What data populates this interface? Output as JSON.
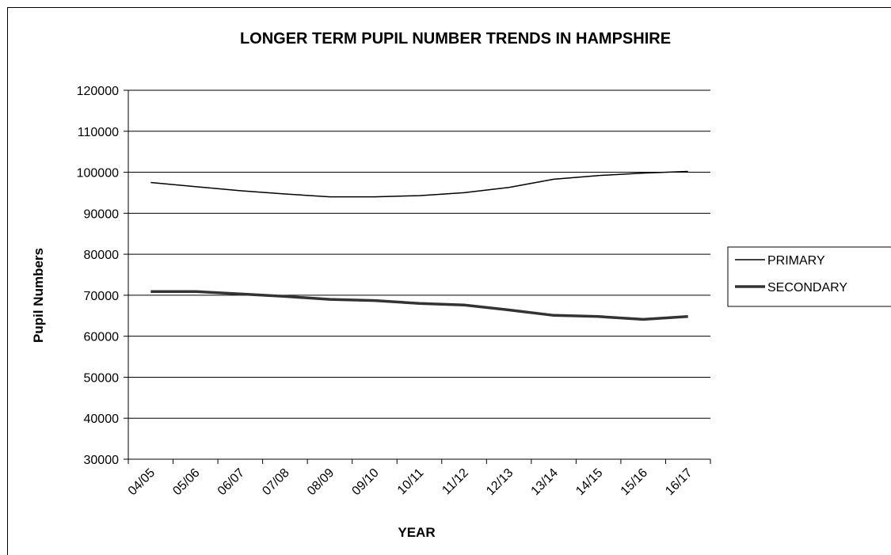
{
  "chart_data": {
    "type": "line",
    "title": "LONGER TERM PUPIL NUMBER TRENDS IN HAMPSHIRE",
    "xlabel": "YEAR",
    "ylabel": "Pupil Numbers",
    "categories": [
      "04/05",
      "05/06",
      "06/07",
      "07/08",
      "08/09",
      "09/10",
      "10/11",
      "11/12",
      "12/13",
      "13/14",
      "14/15",
      "15/16",
      "16/17"
    ],
    "ylim": [
      30000,
      120000
    ],
    "yticks": [
      30000,
      40000,
      50000,
      60000,
      70000,
      80000,
      90000,
      100000,
      110000,
      120000
    ],
    "grid": "horizontal",
    "legend_position": "right",
    "series": [
      {
        "name": "PRIMARY",
        "color": "#000000",
        "stroke": "thin",
        "values": [
          97500,
          96500,
          95500,
          94700,
          94000,
          94000,
          94300,
          95000,
          96300,
          98300,
          99200,
          99800,
          100200
        ]
      },
      {
        "name": "SECONDARY",
        "color": "#333333",
        "stroke": "thick",
        "values": [
          70900,
          70900,
          70300,
          69700,
          69000,
          68700,
          68000,
          67600,
          66400,
          65100,
          64800,
          64100,
          64800
        ]
      }
    ]
  }
}
